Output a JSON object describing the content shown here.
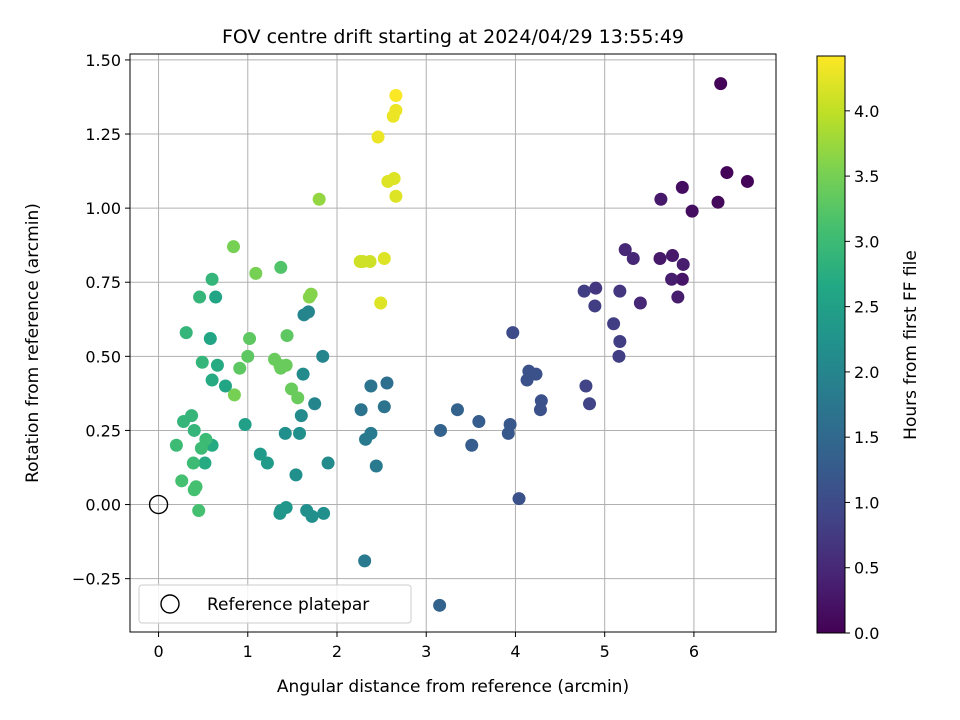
{
  "chart_data": {
    "type": "scatter",
    "title": "FOV centre drift starting at 2024/04/29 13:55:49",
    "xlabel": "Angular distance from reference (arcmin)",
    "ylabel": "Rotation from reference (arcmin)",
    "xlim": [
      -0.32,
      6.92
    ],
    "ylim": [
      -0.43,
      1.52
    ],
    "xticks": [
      0,
      1,
      2,
      3,
      4,
      5,
      6
    ],
    "yticks": [
      -0.25,
      0.0,
      0.25,
      0.5,
      0.75,
      1.0,
      1.25,
      1.5
    ],
    "xtick_labels": [
      "0",
      "1",
      "2",
      "3",
      "4",
      "5",
      "6"
    ],
    "ytick_labels": [
      "−0.25",
      "0.00",
      "0.25",
      "0.50",
      "0.75",
      "1.00",
      "1.25",
      "1.50"
    ],
    "grid": true,
    "colormap": "viridis",
    "colorbar": {
      "label": "Hours from first FF file",
      "range": [
        0.0,
        4.42
      ],
      "ticks": [
        0.0,
        0.5,
        1.0,
        1.5,
        2.0,
        2.5,
        3.0,
        3.5,
        4.0
      ],
      "tick_labels": [
        "0.0",
        "0.5",
        "1.0",
        "1.5",
        "2.0",
        "2.5",
        "3.0",
        "3.5",
        "4.0"
      ]
    },
    "reference_point": {
      "x": 0.0,
      "y": 0.0,
      "style": "hollow-circle"
    },
    "legend": {
      "label": "Reference platepar",
      "position": "lower-left"
    },
    "points": [
      {
        "x": 6.3,
        "y": 1.42,
        "c": 0.05
      },
      {
        "x": 6.37,
        "y": 1.12,
        "c": 0.05
      },
      {
        "x": 6.6,
        "y": 1.09,
        "c": 0.05
      },
      {
        "x": 6.27,
        "y": 1.02,
        "c": 0.1
      },
      {
        "x": 5.87,
        "y": 1.07,
        "c": 0.15
      },
      {
        "x": 5.98,
        "y": 0.99,
        "c": 0.15
      },
      {
        "x": 5.63,
        "y": 1.03,
        "c": 0.3
      },
      {
        "x": 5.62,
        "y": 0.83,
        "c": 0.3
      },
      {
        "x": 5.76,
        "y": 0.84,
        "c": 0.3
      },
      {
        "x": 5.88,
        "y": 0.81,
        "c": 0.35
      },
      {
        "x": 5.87,
        "y": 0.76,
        "c": 0.25
      },
      {
        "x": 5.75,
        "y": 0.76,
        "c": 0.35
      },
      {
        "x": 5.82,
        "y": 0.7,
        "c": 0.35
      },
      {
        "x": 5.23,
        "y": 0.86,
        "c": 0.5
      },
      {
        "x": 5.32,
        "y": 0.83,
        "c": 0.5
      },
      {
        "x": 5.4,
        "y": 0.68,
        "c": 0.5
      },
      {
        "x": 5.17,
        "y": 0.72,
        "c": 0.7
      },
      {
        "x": 4.9,
        "y": 0.73,
        "c": 0.7
      },
      {
        "x": 4.77,
        "y": 0.72,
        "c": 0.8
      },
      {
        "x": 4.89,
        "y": 0.67,
        "c": 0.8
      },
      {
        "x": 5.1,
        "y": 0.61,
        "c": 0.8
      },
      {
        "x": 5.17,
        "y": 0.55,
        "c": 0.8
      },
      {
        "x": 5.16,
        "y": 0.5,
        "c": 0.8
      },
      {
        "x": 4.79,
        "y": 0.4,
        "c": 0.9
      },
      {
        "x": 4.83,
        "y": 0.34,
        "c": 0.9
      },
      {
        "x": 3.97,
        "y": 0.58,
        "c": 1.0
      },
      {
        "x": 4.15,
        "y": 0.45,
        "c": 1.1
      },
      {
        "x": 4.23,
        "y": 0.44,
        "c": 1.1
      },
      {
        "x": 4.13,
        "y": 0.42,
        "c": 1.1
      },
      {
        "x": 4.29,
        "y": 0.35,
        "c": 1.1
      },
      {
        "x": 4.28,
        "y": 0.32,
        "c": 1.1
      },
      {
        "x": 3.94,
        "y": 0.27,
        "c": 1.2
      },
      {
        "x": 3.92,
        "y": 0.24,
        "c": 1.2
      },
      {
        "x": 4.04,
        "y": 0.02,
        "c": 1.1
      },
      {
        "x": 3.59,
        "y": 0.28,
        "c": 1.3
      },
      {
        "x": 3.51,
        "y": 0.2,
        "c": 1.3
      },
      {
        "x": 3.35,
        "y": 0.32,
        "c": 1.4
      },
      {
        "x": 3.16,
        "y": 0.25,
        "c": 1.4
      },
      {
        "x": 3.15,
        "y": -0.34,
        "c": 1.4
      },
      {
        "x": 2.56,
        "y": 0.41,
        "c": 1.6
      },
      {
        "x": 2.38,
        "y": 0.4,
        "c": 1.7
      },
      {
        "x": 2.53,
        "y": 0.33,
        "c": 1.7
      },
      {
        "x": 2.27,
        "y": 0.32,
        "c": 1.7
      },
      {
        "x": 2.38,
        "y": 0.24,
        "c": 1.8
      },
      {
        "x": 2.32,
        "y": 0.22,
        "c": 1.8
      },
      {
        "x": 2.44,
        "y": 0.13,
        "c": 1.8
      },
      {
        "x": 2.31,
        "y": -0.19,
        "c": 1.8
      },
      {
        "x": 1.84,
        "y": 0.5,
        "c": 2.0
      },
      {
        "x": 1.68,
        "y": 0.65,
        "c": 2.0
      },
      {
        "x": 1.63,
        "y": 0.64,
        "c": 2.0
      },
      {
        "x": 1.75,
        "y": 0.34,
        "c": 2.0
      },
      {
        "x": 1.62,
        "y": 0.44,
        "c": 2.1
      },
      {
        "x": 1.6,
        "y": 0.3,
        "c": 2.1
      },
      {
        "x": 1.9,
        "y": 0.14,
        "c": 2.1
      },
      {
        "x": 1.58,
        "y": 0.24,
        "c": 2.2
      },
      {
        "x": 1.42,
        "y": 0.24,
        "c": 2.2
      },
      {
        "x": 1.54,
        "y": 0.1,
        "c": 2.2
      },
      {
        "x": 1.85,
        "y": -0.03,
        "c": 2.2
      },
      {
        "x": 1.66,
        "y": -0.02,
        "c": 2.2
      },
      {
        "x": 1.72,
        "y": -0.04,
        "c": 2.2
      },
      {
        "x": 1.43,
        "y": -0.01,
        "c": 2.3
      },
      {
        "x": 1.37,
        "y": -0.02,
        "c": 2.3
      },
      {
        "x": 1.36,
        "y": -0.03,
        "c": 2.3
      },
      {
        "x": 1.22,
        "y": 0.14,
        "c": 2.4
      },
      {
        "x": 1.14,
        "y": 0.17,
        "c": 2.4
      },
      {
        "x": 0.97,
        "y": 0.27,
        "c": 2.5
      },
      {
        "x": 0.58,
        "y": 0.56,
        "c": 2.6
      },
      {
        "x": 0.64,
        "y": 0.7,
        "c": 2.6
      },
      {
        "x": 0.75,
        "y": 0.4,
        "c": 2.6
      },
      {
        "x": 0.66,
        "y": 0.47,
        "c": 2.7
      },
      {
        "x": 0.6,
        "y": 0.42,
        "c": 2.7
      },
      {
        "x": 0.6,
        "y": 0.2,
        "c": 2.7
      },
      {
        "x": 0.52,
        "y": 0.14,
        "c": 2.7
      },
      {
        "x": 0.6,
        "y": 0.76,
        "c": 2.9
      },
      {
        "x": 0.46,
        "y": 0.7,
        "c": 2.9
      },
      {
        "x": 0.31,
        "y": 0.58,
        "c": 2.9
      },
      {
        "x": 0.49,
        "y": 0.48,
        "c": 2.9
      },
      {
        "x": 0.28,
        "y": 0.28,
        "c": 2.9
      },
      {
        "x": 0.37,
        "y": 0.3,
        "c": 2.9
      },
      {
        "x": 0.4,
        "y": 0.25,
        "c": 2.9
      },
      {
        "x": 0.53,
        "y": 0.22,
        "c": 3.0
      },
      {
        "x": 0.48,
        "y": 0.19,
        "c": 3.0
      },
      {
        "x": 0.2,
        "y": 0.2,
        "c": 3.0
      },
      {
        "x": 0.39,
        "y": 0.14,
        "c": 3.0
      },
      {
        "x": 0.26,
        "y": 0.08,
        "c": 3.1
      },
      {
        "x": 0.42,
        "y": 0.06,
        "c": 3.1
      },
      {
        "x": 0.4,
        "y": 0.05,
        "c": 3.1
      },
      {
        "x": 0.45,
        "y": -0.02,
        "c": 3.1
      },
      {
        "x": 1.37,
        "y": 0.8,
        "c": 3.2
      },
      {
        "x": 1.44,
        "y": 0.57,
        "c": 3.3
      },
      {
        "x": 1.02,
        "y": 0.56,
        "c": 3.3
      },
      {
        "x": 1.0,
        "y": 0.5,
        "c": 3.3
      },
      {
        "x": 0.91,
        "y": 0.46,
        "c": 3.3
      },
      {
        "x": 1.3,
        "y": 0.49,
        "c": 3.4
      },
      {
        "x": 1.36,
        "y": 0.47,
        "c": 3.4
      },
      {
        "x": 1.43,
        "y": 0.47,
        "c": 3.4
      },
      {
        "x": 1.37,
        "y": 0.46,
        "c": 3.4
      },
      {
        "x": 1.49,
        "y": 0.39,
        "c": 3.4
      },
      {
        "x": 1.56,
        "y": 0.36,
        "c": 3.4
      },
      {
        "x": 1.09,
        "y": 0.78,
        "c": 3.5
      },
      {
        "x": 0.84,
        "y": 0.87,
        "c": 3.5
      },
      {
        "x": 0.85,
        "y": 0.37,
        "c": 3.5
      },
      {
        "x": 1.71,
        "y": 0.71,
        "c": 3.6
      },
      {
        "x": 1.69,
        "y": 0.7,
        "c": 3.6
      },
      {
        "x": 1.8,
        "y": 1.03,
        "c": 3.7
      },
      {
        "x": 2.26,
        "y": 0.82,
        "c": 4.1
      },
      {
        "x": 2.29,
        "y": 0.82,
        "c": 4.1
      },
      {
        "x": 2.37,
        "y": 0.82,
        "c": 4.1
      },
      {
        "x": 2.53,
        "y": 0.83,
        "c": 4.2
      },
      {
        "x": 2.49,
        "y": 0.68,
        "c": 4.2
      },
      {
        "x": 2.57,
        "y": 1.09,
        "c": 4.2
      },
      {
        "x": 2.64,
        "y": 1.1,
        "c": 4.2
      },
      {
        "x": 2.66,
        "y": 1.04,
        "c": 4.2
      },
      {
        "x": 2.46,
        "y": 1.24,
        "c": 4.3
      },
      {
        "x": 2.63,
        "y": 1.31,
        "c": 4.3
      },
      {
        "x": 2.66,
        "y": 1.33,
        "c": 4.3
      },
      {
        "x": 2.66,
        "y": 1.38,
        "c": 4.4
      }
    ]
  }
}
